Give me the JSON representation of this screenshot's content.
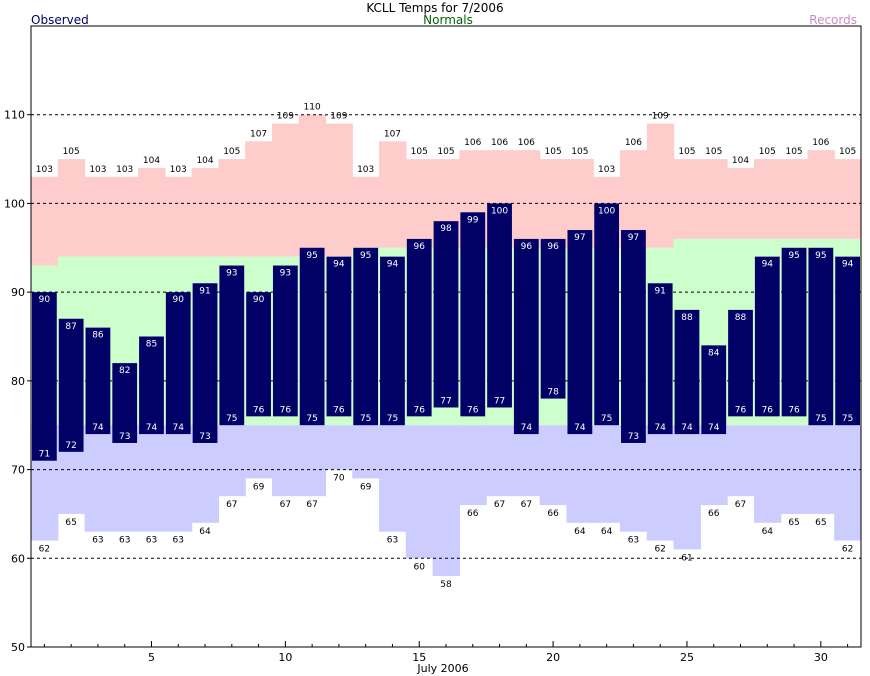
{
  "chart_data": {
    "type": "bar",
    "title": "KCLL Temps for 7/2006",
    "legend": {
      "observed": "Observed",
      "normals": "Normals",
      "records": "Records"
    },
    "xlabel": "July 2006",
    "ylabel": "",
    "ylim": [
      50,
      120
    ],
    "yticks": [
      50,
      60,
      70,
      80,
      90,
      100,
      110
    ],
    "xticks": [
      5,
      10,
      15,
      20,
      25,
      30
    ],
    "grid": true,
    "days": [
      1,
      2,
      3,
      4,
      5,
      6,
      7,
      8,
      9,
      10,
      11,
      12,
      13,
      14,
      15,
      16,
      17,
      18,
      19,
      20,
      21,
      22,
      23,
      24,
      25,
      26,
      27,
      28,
      29,
      30,
      31
    ],
    "observed_high": [
      90,
      87,
      86,
      82,
      85,
      90,
      91,
      93,
      90,
      93,
      95,
      94,
      95,
      94,
      96,
      98,
      99,
      100,
      96,
      96,
      97,
      100,
      97,
      91,
      88,
      84,
      88,
      94,
      95,
      95,
      94
    ],
    "observed_low": [
      71,
      72,
      74,
      73,
      74,
      74,
      73,
      75,
      76,
      76,
      75,
      76,
      75,
      75,
      76,
      77,
      76,
      77,
      74,
      78,
      74,
      75,
      73,
      74,
      74,
      74,
      76,
      76,
      76,
      75,
      75
    ],
    "normal_high": [
      93,
      94,
      94,
      94,
      94,
      94,
      94,
      94,
      94,
      94,
      94,
      94,
      95,
      95,
      95,
      95,
      95,
      95,
      95,
      95,
      95,
      95,
      95,
      95,
      96,
      96,
      96,
      96,
      96,
      96,
      96
    ],
    "normal_low": [
      75,
      75,
      75,
      75,
      75,
      75,
      75,
      75,
      75,
      75,
      75,
      75,
      75,
      75,
      75,
      75,
      75,
      75,
      75,
      75,
      75,
      75,
      75,
      75,
      75,
      75,
      75,
      75,
      75,
      75,
      75
    ],
    "record_high": [
      103,
      105,
      103,
      103,
      104,
      103,
      104,
      105,
      107,
      109,
      110,
      109,
      103,
      107,
      105,
      105,
      106,
      106,
      106,
      105,
      105,
      103,
      106,
      109,
      105,
      105,
      104,
      105,
      105,
      106,
      105
    ],
    "record_low": [
      62,
      65,
      63,
      63,
      63,
      63,
      64,
      67,
      69,
      67,
      67,
      70,
      69,
      63,
      60,
      58,
      66,
      67,
      67,
      66,
      64,
      64,
      63,
      62,
      61,
      66,
      67,
      64,
      65,
      65,
      62
    ],
    "colors": {
      "observed": "#000066",
      "observed_label": "#000066",
      "normals_band": "#ccffcc",
      "normals_label": "#006600",
      "record_high_band": "#ffcccc",
      "record_low_band": "#ccccff",
      "records_label": "#cc88cc",
      "grid": "#000000"
    }
  }
}
